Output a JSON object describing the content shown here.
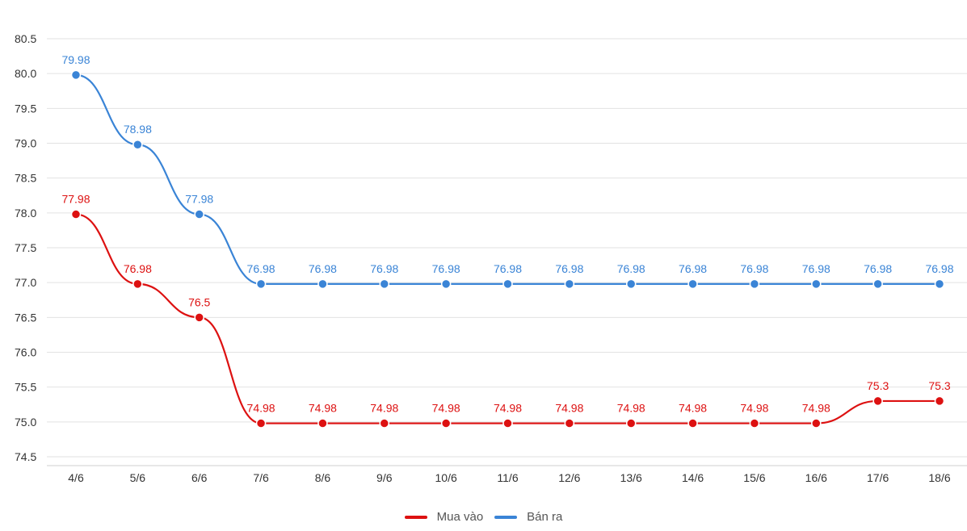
{
  "chart_data": {
    "type": "line",
    "categories": [
      "4/6",
      "5/6",
      "6/6",
      "7/6",
      "8/6",
      "9/6",
      "10/6",
      "11/6",
      "12/6",
      "13/6",
      "14/6",
      "15/6",
      "16/6",
      "17/6",
      "18/6"
    ],
    "series": [
      {
        "name": "Mua vào",
        "color": "#dd1111",
        "values": [
          77.98,
          76.98,
          76.5,
          74.98,
          74.98,
          74.98,
          74.98,
          74.98,
          74.98,
          74.98,
          74.98,
          74.98,
          74.98,
          75.3,
          75.3
        ],
        "labels": [
          "77.98",
          "76.98",
          "76.5",
          "74.98",
          "74.98",
          "74.98",
          "74.98",
          "74.98",
          "74.98",
          "74.98",
          "74.98",
          "74.98",
          "74.98",
          "75.3",
          "75.3"
        ]
      },
      {
        "name": "Bán ra",
        "color": "#3a84d6",
        "values": [
          79.98,
          78.98,
          77.98,
          76.98,
          76.98,
          76.98,
          76.98,
          76.98,
          76.98,
          76.98,
          76.98,
          76.98,
          76.98,
          76.98,
          76.98
        ],
        "labels": [
          "79.98",
          "78.98",
          "77.98",
          "76.98",
          "76.98",
          "76.98",
          "76.98",
          "76.98",
          "76.98",
          "76.98",
          "76.98",
          "76.98",
          "76.98",
          "76.98",
          "76.98"
        ]
      }
    ],
    "y_ticks": [
      "74.5",
      "75.0",
      "75.5",
      "76.0",
      "76.5",
      "77.0",
      "77.5",
      "78.0",
      "78.5",
      "79.0",
      "79.5",
      "80.0",
      "80.5"
    ],
    "ylim": [
      74.5,
      80.5
    ],
    "grid": true,
    "legend_position": "bottom-center"
  }
}
